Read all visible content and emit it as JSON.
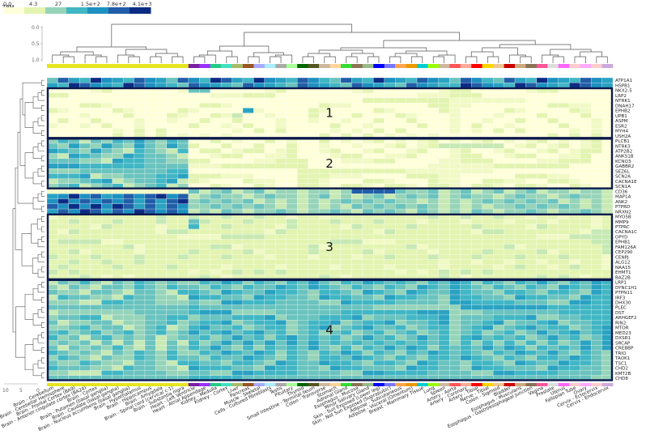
{
  "chart_data": {
    "type": "heatmap",
    "title": "TPM",
    "legend": {
      "label": "TPM",
      "ticks": [
        "0.0",
        "4.3",
        "27",
        "1.5e+2",
        "7.8e+2",
        "4.1e+3"
      ],
      "colors": [
        "#ffffd9",
        "#e3f4b1",
        "#96d4b9",
        "#41b6c4",
        "#1d91c0",
        "#225ea8",
        "#0c2c84"
      ]
    },
    "column_dendrogram_axis": {
      "ticks": [
        "0.0",
        "0.5",
        "1.0"
      ]
    },
    "row_dendrogram_axis": {
      "ticks": [
        "0",
        "5",
        "10"
      ]
    },
    "columns": [
      {
        "label": "Brain - Cerebellum",
        "color": "#e6e620"
      },
      {
        "label": "Brain - Cerebellar Hemisphere",
        "color": "#e6e620"
      },
      {
        "label": "Brain - Frontal Cortex (BA9)",
        "color": "#e6e620"
      },
      {
        "label": "Brain - Anterior cingulate cortex (BA24)",
        "color": "#e6e620"
      },
      {
        "label": "Brain - Cortex",
        "color": "#e6e620"
      },
      {
        "label": "Brain - Putamen (basal ganglia)",
        "color": "#e6e620"
      },
      {
        "label": "Brain - Caudate (basal ganglia)",
        "color": "#e6e620"
      },
      {
        "label": "Brain - Nucleus accumbens (basal ganglia)",
        "color": "#e6e620"
      },
      {
        "label": "Brain - Hypothalamus",
        "color": "#e6e620"
      },
      {
        "label": "Brain - Hippocampus",
        "color": "#e6e620"
      },
      {
        "label": "Brain - Amygdala",
        "color": "#e6e620"
      },
      {
        "label": "Brain - Spinal cord (cervical c-1)",
        "color": "#e6e620"
      },
      {
        "label": "Brain - Substantia nigra",
        "color": "#e6e620"
      },
      {
        "label": "Heart - Left Ventricle",
        "color": "#7a1fa2"
      },
      {
        "label": "Heart - Atrial Appendage",
        "color": "#9b30ff"
      },
      {
        "label": "Kidney - Medulla",
        "color": "#22cc88"
      },
      {
        "label": "Kidney - Cortex",
        "color": "#44e0c0"
      },
      {
        "label": "Liver",
        "color": "#aabb66"
      },
      {
        "label": "Pancreas",
        "color": "#995522"
      },
      {
        "label": "Muscle - Skeletal",
        "color": "#aaaaff"
      },
      {
        "label": "Cells - Cultured fibroblasts",
        "color": "#aaeeff"
      },
      {
        "label": "Testis",
        "color": "#aaaaaa"
      },
      {
        "label": "Pituitary",
        "color": "#aaff99"
      },
      {
        "label": "Thyroid",
        "color": "#006600"
      },
      {
        "label": "Small Intestine - Terminal Ileum",
        "color": "#555522"
      },
      {
        "label": "Colon - Transverse",
        "color": "#cdb79e"
      },
      {
        "label": "Stomach",
        "color": "#ffd39b"
      },
      {
        "label": "Adrenal Gland",
        "color": "#33dd33"
      },
      {
        "label": "Esophagus - Mucosa",
        "color": "#8b7355"
      },
      {
        "label": "Minor Salivary Gland",
        "color": "#99bb88"
      },
      {
        "label": "Skin - Sun Exposed (Lower leg)",
        "color": "#0000ff"
      },
      {
        "label": "Skin - Not Sun Exposed (Suprapubic)",
        "color": "#7777ff"
      },
      {
        "label": "Adipose - Subcutaneous",
        "color": "#ffa54f"
      },
      {
        "label": "Adipose - Visceral (Omentum)",
        "color": "#ee9a00"
      },
      {
        "label": "Breast - Mammary Tissue",
        "color": "#00cdcd"
      },
      {
        "label": "Lung",
        "color": "#99ff00"
      },
      {
        "label": "Spleen",
        "color": "#cdb79e"
      },
      {
        "label": "Artery - Aorta",
        "color": "#ff5555"
      },
      {
        "label": "Artery - Coronary",
        "color": "#ffaa99"
      },
      {
        "label": "Artery - Tibial",
        "color": "#ff0000"
      },
      {
        "label": "Nerve - Tibial",
        "color": "#ffd700"
      },
      {
        "label": "Colon - Sigmoid",
        "color": "#eec591"
      },
      {
        "label": "Bladder",
        "color": "#cd0000"
      },
      {
        "label": "Esophagus - Muscularis",
        "color": "#cdaa7d"
      },
      {
        "label": "Esophagus - Gastroesophageal Junction",
        "color": "#8b7355"
      },
      {
        "label": "Vagina",
        "color": "#ff5599"
      },
      {
        "label": "Prostate",
        "color": "#dddddd"
      },
      {
        "label": "Uterus",
        "color": "#ff66ff"
      },
      {
        "label": "Fallopian Tube",
        "color": "#ffcccc"
      },
      {
        "label": "Ovary",
        "color": "#ffaaff"
      },
      {
        "label": "Cervix - Ectocervix",
        "color": "#ffcccc"
      },
      {
        "label": "Cervix - Endocervix",
        "color": "#ccaadd"
      }
    ],
    "rows": [
      "ATP1A1",
      "HSPB1",
      "NKX2-5",
      "LRP2",
      "NTRK1",
      "DNAH17",
      "EPHB2",
      "UPB1",
      "ASPM",
      "ESR2",
      "MYH4",
      "USH2A",
      "PLCB1",
      "NTRK3",
      "ATP2B2",
      "ANKS1B",
      "KCNQ3",
      "GABBR2",
      "SEZ6L",
      "SCN2A",
      "CACNA1E",
      "SCN1A",
      "CD36",
      "MAP1A",
      "ANK2",
      "PTPRD",
      "NRXN2",
      "MYO5B",
      "MMP9",
      "PTPRC",
      "CACNA1C",
      "OPYD",
      "EPHB1",
      "FAM126A",
      "CEP290",
      "CENPJ",
      "ALG12",
      "NAA15",
      "EHMT1",
      "BAZ2B",
      "LRP1",
      "DYNC1H1",
      "PTPN11",
      "IRF3",
      "DHX30",
      "PLEC",
      "DST",
      "ARHGEF2",
      "RIN2",
      "MTOR",
      "MED23",
      "DXSR1",
      "SRCAP",
      "CREBBP",
      "TRIO",
      "TAOK1",
      "TSC1",
      "CHD2",
      "KMT2B",
      "CHD8"
    ],
    "clusters": [
      {
        "label": "1",
        "rows": [
          "NKX2-5",
          "USH2A"
        ]
      },
      {
        "label": "2",
        "rows": [
          "PLCB1",
          "SCN1A"
        ]
      },
      {
        "label": "3",
        "rows": [
          "MYO5B",
          "BAZ2B"
        ]
      },
      {
        "label": "4",
        "rows": [
          "LRP1",
          "CHD8"
        ]
      }
    ]
  }
}
